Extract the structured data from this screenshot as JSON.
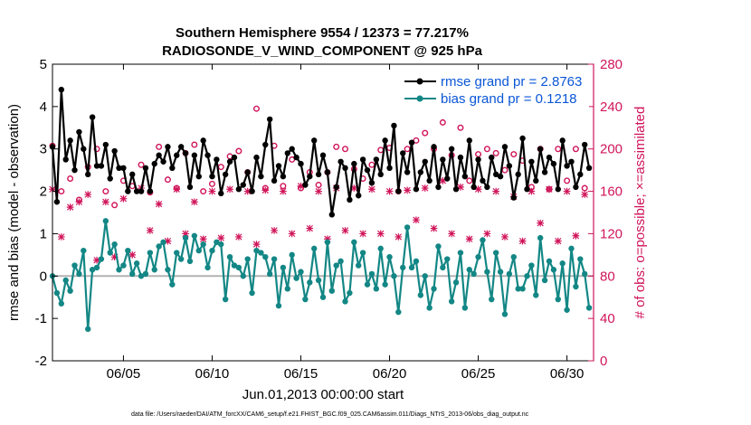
{
  "chart_data": {
    "type": "line",
    "title_line1": "Southern Hemisphere 9554 / 12373 = 77.217%",
    "title_line2": "RADIOSONDE_V_WIND_COMPONENT @ 925 hPa",
    "xlabel": "Jun.01,2013 00:00:00 start",
    "ylabel_left": "rmse and bias (model - observation)",
    "ylabel_right": "# of obs: o=possible; ×=assimilated",
    "xlim": [
      1.0,
      31.5
    ],
    "ylim_left": [
      -2,
      5
    ],
    "ylim_right": [
      0,
      280
    ],
    "x_ticks": [
      5,
      10,
      15,
      20,
      25,
      30
    ],
    "x_tick_labels": [
      "06/05",
      "06/10",
      "06/15",
      "06/20",
      "06/25",
      "06/30"
    ],
    "y_ticks_left": [
      -2,
      -1,
      0,
      1,
      2,
      3,
      4,
      5
    ],
    "y_ticks_right": [
      0,
      40,
      80,
      120,
      160,
      200,
      240,
      280
    ],
    "colors": {
      "rmse": "#000000",
      "bias": "#138785",
      "obs": "#d0155a",
      "zero_line": "#b3b3b3",
      "legend_text": "#0a56d6"
    },
    "legend_position": "top-right",
    "x": [
      1.0,
      1.25,
      1.5,
      1.75,
      2.0,
      2.25,
      2.5,
      2.75,
      3.0,
      3.25,
      3.5,
      3.75,
      4.0,
      4.25,
      4.5,
      4.75,
      5.0,
      5.25,
      5.5,
      5.75,
      6.0,
      6.25,
      6.5,
      6.75,
      7.0,
      7.25,
      7.5,
      7.75,
      8.0,
      8.25,
      8.5,
      8.75,
      9.0,
      9.25,
      9.5,
      9.75,
      10.0,
      10.25,
      10.5,
      10.75,
      11.0,
      11.25,
      11.5,
      11.75,
      12.0,
      12.25,
      12.5,
      12.75,
      13.0,
      13.25,
      13.5,
      13.75,
      14.0,
      14.25,
      14.5,
      14.75,
      15.0,
      15.25,
      15.5,
      15.75,
      16.0,
      16.25,
      16.5,
      16.75,
      17.0,
      17.25,
      17.5,
      17.75,
      18.0,
      18.25,
      18.5,
      18.75,
      19.0,
      19.25,
      19.5,
      19.75,
      20.0,
      20.25,
      20.5,
      20.75,
      21.0,
      21.25,
      21.5,
      21.75,
      22.0,
      22.25,
      22.5,
      22.75,
      23.0,
      23.25,
      23.5,
      23.75,
      24.0,
      24.25,
      24.5,
      24.75,
      25.0,
      25.25,
      25.5,
      25.75,
      26.0,
      26.25,
      26.5,
      26.75,
      27.0,
      27.25,
      27.5,
      27.75,
      28.0,
      28.25,
      28.5,
      28.75,
      29.0,
      29.25,
      29.5,
      29.75,
      30.0,
      30.25,
      30.5,
      30.75,
      31.0,
      31.25
    ],
    "series": [
      {
        "name": "rmse grand pr = 2.8763",
        "axis": "left",
        "values": [
          3.05,
          1.75,
          4.4,
          2.75,
          3.2,
          2.5,
          3.4,
          3.0,
          2.4,
          3.75,
          2.6,
          2.6,
          3.1,
          2.3,
          2.95,
          2.55,
          2.55,
          2.0,
          2.4,
          2.0,
          2.0,
          2.55,
          2.0,
          2.65,
          2.85,
          2.7,
          3.05,
          2.55,
          2.85,
          3.05,
          2.9,
          2.1,
          2.85,
          2.35,
          3.2,
          2.85,
          2.35,
          2.75,
          1.95,
          2.4,
          2.7,
          2.8,
          2.05,
          2.15,
          2.45,
          2.0,
          2.8,
          2.35,
          3.1,
          3.7,
          2.25,
          2.6,
          2.35,
          2.9,
          3.0,
          2.8,
          2.65,
          2.15,
          2.35,
          3.2,
          2.4,
          2.85,
          2.45,
          1.45,
          2.1,
          2.7,
          2.55,
          1.8,
          2.65,
          1.9,
          2.75,
          2.5,
          2.2,
          2.75,
          2.4,
          3.2,
          2.55,
          3.55,
          2.0,
          2.9,
          2.45,
          3.15,
          2.05,
          2.45,
          2.7,
          2.25,
          3.05,
          2.1,
          2.75,
          2.3,
          3.0,
          2.05,
          2.8,
          2.35,
          3.2,
          2.1,
          2.75,
          2.25,
          2.1,
          2.8,
          2.4,
          2.35,
          3.05,
          2.6,
          1.85,
          2.4,
          3.25,
          2.05,
          2.7,
          2.25,
          3.0,
          2.45,
          2.8,
          2.65,
          2.05,
          3.2,
          2.6,
          2.7,
          2.1,
          2.4,
          3.1,
          2.55
        ]
      },
      {
        "name": "bias grand pr = 0.1218",
        "axis": "left",
        "values": [
          0.0,
          -0.4,
          -0.65,
          -0.1,
          -0.35,
          0.25,
          0.05,
          0.6,
          -1.25,
          0.15,
          0.2,
          0.4,
          1.3,
          0.55,
          0.75,
          0.15,
          0.25,
          0.6,
          0.05,
          0.3,
          0.0,
          0.05,
          0.55,
          0.15,
          0.7,
          0.8,
          0.15,
          -0.2,
          0.55,
          0.4,
          0.9,
          0.35,
          0.95,
          0.6,
          0.75,
          0.2,
          0.6,
          0.8,
          0.75,
          -0.55,
          0.45,
          0.25,
          0.2,
          0.0,
          0.4,
          -0.4,
          0.6,
          0.55,
          0.45,
          0.05,
          0.4,
          -0.7,
          0.2,
          -0.3,
          0.5,
          -0.05,
          0.1,
          -0.55,
          -0.15,
          0.65,
          -0.1,
          -0.5,
          0.8,
          -0.35,
          0.25,
          0.35,
          -0.6,
          -0.4,
          0.8,
          0.25,
          0.55,
          -0.2,
          0.05,
          -0.3,
          0.65,
          -0.2,
          0.45,
          0.0,
          -0.85,
          0.2,
          1.15,
          0.2,
          0.35,
          -0.45,
          0.0,
          -0.75,
          -0.3,
          0.7,
          0.2,
          0.4,
          -0.6,
          -0.15,
          0.55,
          -0.75,
          0.15,
          0.05,
          0.45,
          0.85,
          0.1,
          -0.55,
          0.55,
          0.1,
          -0.9,
          0.05,
          0.45,
          -0.3,
          -0.3,
          0.0,
          0.25,
          -0.45,
          0.9,
          -0.1,
          0.35,
          0.15,
          -0.55,
          0.3,
          -0.8,
          0.65,
          -0.25,
          0.4,
          0.05,
          -0.75
        ]
      }
    ],
    "obs_possible": {
      "x": [
        1.0,
        1.5,
        2.0,
        2.5,
        3.0,
        3.5,
        4.0,
        4.5,
        5.0,
        5.5,
        6.0,
        6.5,
        7.0,
        7.5,
        8.0,
        8.5,
        9.0,
        9.5,
        10.0,
        10.5,
        11.0,
        11.5,
        12.0,
        12.5,
        13.0,
        13.5,
        14.0,
        14.5,
        15.0,
        15.5,
        16.0,
        16.5,
        17.0,
        17.5,
        18.0,
        18.5,
        19.0,
        19.5,
        20.0,
        20.5,
        21.0,
        21.5,
        22.0,
        22.5,
        23.0,
        23.5,
        24.0,
        24.5,
        25.0,
        25.5,
        26.0,
        26.5,
        27.0,
        27.5,
        28.0,
        28.5,
        29.0,
        29.5,
        30.0,
        30.5,
        31.0
      ],
      "values": [
        203,
        160,
        172,
        152,
        183,
        200,
        160,
        147,
        170,
        165,
        185,
        159,
        202,
        171,
        163,
        196,
        204,
        160,
        167,
        183,
        193,
        198,
        178,
        238,
        163,
        203,
        165,
        190,
        163,
        178,
        166,
        178,
        202,
        200,
        181,
        172,
        185,
        199,
        201,
        160,
        200,
        208,
        215,
        200,
        225,
        194,
        220,
        170,
        195,
        200,
        196,
        180,
        195,
        189,
        164,
        200,
        162,
        200,
        170,
        200,
        163
      ]
    },
    "obs_assimilated": {
      "x": [
        1.0,
        1.5,
        2.0,
        2.5,
        3.0,
        3.5,
        4.0,
        4.5,
        5.0,
        5.5,
        6.0,
        6.5,
        7.0,
        7.5,
        8.0,
        8.5,
        9.0,
        9.5,
        10.0,
        10.5,
        11.0,
        11.5,
        12.0,
        12.5,
        13.0,
        13.5,
        14.0,
        14.5,
        15.0,
        15.5,
        16.0,
        16.5,
        17.0,
        17.5,
        18.0,
        18.5,
        19.0,
        19.5,
        20.0,
        20.5,
        21.0,
        21.5,
        22.0,
        22.5,
        23.0,
        23.5,
        24.0,
        24.5,
        25.0,
        25.5,
        26.0,
        26.5,
        27.0,
        27.5,
        28.0,
        28.5,
        29.0,
        29.5,
        30.0,
        30.5,
        31.0
      ],
      "values": [
        162,
        117,
        145,
        150,
        157,
        95,
        150,
        98,
        153,
        100,
        163,
        123,
        148,
        113,
        162,
        120,
        150,
        115,
        160,
        116,
        162,
        117,
        160,
        110,
        161,
        123,
        160,
        120,
        165,
        125,
        160,
        115,
        163,
        123,
        163,
        120,
        162,
        120,
        160,
        117,
        161,
        133,
        163,
        125,
        170,
        120,
        164,
        115,
        162,
        120,
        160,
        117,
        155,
        113,
        160,
        130,
        162,
        113,
        160,
        118,
        157
      ]
    }
  },
  "footer": {
    "file_path": "data file: /Users/raeder/DAI/ATM_forcXX/CAM6_setup/f.e21.FHIST_BGC.f09_025.CAM6assim.011/Diags_NTrS_2013-06/obs_diag_output.nc"
  }
}
